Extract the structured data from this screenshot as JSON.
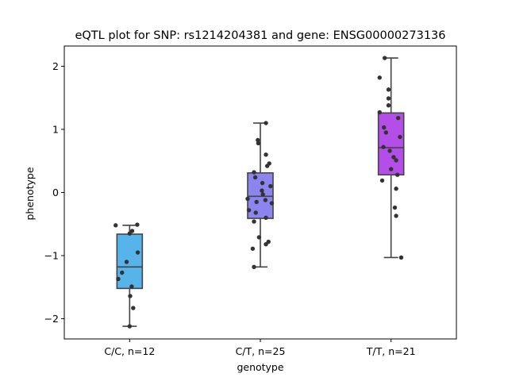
{
  "chart_data": {
    "type": "box",
    "title": "eQTL plot for SNP: rs1214204381 and gene: ENSG00000273136",
    "xlabel": "genotype",
    "ylabel": "phenotype",
    "ylim": [
      -2.32,
      2.32
    ],
    "yticks": [
      -2,
      -1,
      0,
      1,
      2
    ],
    "ytick_labels": [
      "−2",
      "−1",
      "0",
      "1",
      "2"
    ],
    "grid": false,
    "categories": [
      "C/C, n=12",
      "C/T, n=25",
      "T/T, n=21"
    ],
    "boxes": [
      {
        "label": "C/C, n=12",
        "color": "#56b4ea",
        "whisker_low": -2.12,
        "q1": -1.52,
        "median": -1.18,
        "q3": -0.66,
        "whisker_high": -0.52
      },
      {
        "label": "C/T, n=25",
        "color": "#8c85f0",
        "whisker_low": -1.18,
        "q1": -0.41,
        "median": -0.06,
        "q3": 0.31,
        "whisker_high": 1.1
      },
      {
        "label": "T/T, n=21",
        "color": "#b44ee8",
        "whisker_low": -1.03,
        "q1": 0.28,
        "median": 0.71,
        "q3": 1.26,
        "whisker_high": 2.13
      }
    ],
    "points": [
      [
        [
          -0.55,
          -0.52
        ],
        [
          0.3,
          -0.51
        ],
        [
          0.1,
          -0.61
        ],
        [
          0.0,
          -0.65
        ],
        [
          0.32,
          -0.95
        ],
        [
          -0.12,
          -1.1
        ],
        [
          -0.3,
          -1.27
        ],
        [
          -0.45,
          -1.37
        ],
        [
          0.08,
          -1.49
        ],
        [
          0.02,
          -1.64
        ],
        [
          0.14,
          -1.83
        ],
        [
          0.0,
          -2.12
        ]
      ],
      [
        [
          0.22,
          1.1
        ],
        [
          -0.1,
          0.83
        ],
        [
          -0.08,
          0.78
        ],
        [
          0.22,
          0.6
        ],
        [
          0.35,
          0.46
        ],
        [
          0.27,
          0.42
        ],
        [
          -0.25,
          0.32
        ],
        [
          -0.2,
          0.24
        ],
        [
          0.08,
          0.15
        ],
        [
          0.4,
          0.1
        ],
        [
          0.06,
          0.03
        ],
        [
          0.1,
          -0.03
        ],
        [
          -0.5,
          -0.1
        ],
        [
          0.2,
          -0.12
        ],
        [
          -0.15,
          -0.15
        ],
        [
          0.45,
          -0.17
        ],
        [
          -0.45,
          -0.28
        ],
        [
          -0.18,
          -0.32
        ],
        [
          0.22,
          -0.4
        ],
        [
          -0.25,
          -0.46
        ],
        [
          -0.05,
          -0.71
        ],
        [
          0.32,
          -0.78
        ],
        [
          0.22,
          -0.82
        ],
        [
          -0.3,
          -0.89
        ],
        [
          -0.25,
          -1.18
        ]
      ],
      [
        [
          -0.25,
          2.13
        ],
        [
          -0.45,
          1.82
        ],
        [
          -0.1,
          1.63
        ],
        [
          -0.1,
          1.49
        ],
        [
          -0.1,
          1.38
        ],
        [
          -0.45,
          1.27
        ],
        [
          0.28,
          1.18
        ],
        [
          -0.28,
          1.03
        ],
        [
          -0.2,
          0.95
        ],
        [
          0.35,
          0.88
        ],
        [
          -0.3,
          0.72
        ],
        [
          -0.05,
          0.66
        ],
        [
          0.1,
          0.56
        ],
        [
          0.2,
          0.51
        ],
        [
          0.0,
          0.37
        ],
        [
          0.25,
          0.28
        ],
        [
          -0.35,
          0.19
        ],
        [
          0.2,
          0.06
        ],
        [
          0.15,
          -0.24
        ],
        [
          0.2,
          -0.37
        ],
        [
          0.4,
          -1.03
        ]
      ]
    ]
  }
}
